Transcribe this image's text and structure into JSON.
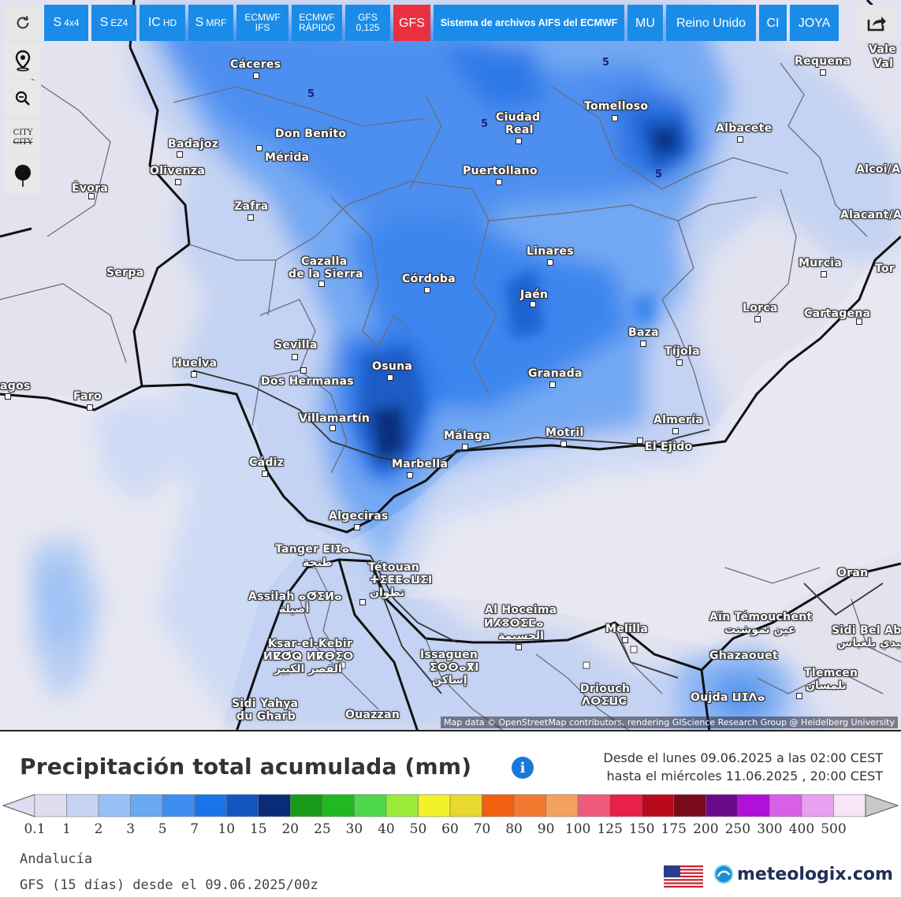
{
  "toolbar": {
    "refresh_icon": "refresh-icon",
    "buttons": [
      {
        "main": "S",
        "sub": "4x4"
      },
      {
        "main": "S",
        "sub": "EZ4"
      },
      {
        "main": "IC",
        "sub": "HD"
      },
      {
        "main": "S",
        "sub": "MRF"
      },
      {
        "line1": "ECMWF",
        "line2": "IFS"
      },
      {
        "line1": "ECMWF",
        "line2": "RÁPIDO"
      },
      {
        "line1": "GFS",
        "line2": "0,125"
      },
      {
        "main": "GFS"
      },
      {
        "main": "Sistema de archivos AIFS del ECMWF"
      },
      {
        "main": "MU"
      },
      {
        "main": "Reino Unido"
      },
      {
        "main": "CI"
      },
      {
        "main": "JOYA"
      }
    ],
    "active_model": "GFS",
    "share_icon": "share-icon"
  },
  "side_tools": {
    "location_icon": "map-pin-icon",
    "zoom_icon": "zoom-icon",
    "city_line1": "CITY",
    "city_line2": "CITY",
    "marker_icon": "marker-icon"
  },
  "map": {
    "cities": [
      {
        "name": "Cáceres"
      },
      {
        "name": "Requena"
      },
      {
        "name": "Vale"
      },
      {
        "name": "Val"
      },
      {
        "name": "Ciudad"
      },
      {
        "name": "Real"
      },
      {
        "name": "Tomelloso"
      },
      {
        "name": "Albacete"
      },
      {
        "name": "Badajoz"
      },
      {
        "name": "Don Benito"
      },
      {
        "name": "Mérida"
      },
      {
        "name": "Olivenza"
      },
      {
        "name": "Évora"
      },
      {
        "name": "Puertollano"
      },
      {
        "name": "Alcoi/A"
      },
      {
        "name": "Zafra"
      },
      {
        "name": "Alacant/A"
      },
      {
        "name": "Cazalla"
      },
      {
        "name": "de la Sierra"
      },
      {
        "name": "Linares"
      },
      {
        "name": "Murcia"
      },
      {
        "name": "Tor"
      },
      {
        "name": "Serpa"
      },
      {
        "name": "Córdoba"
      },
      {
        "name": "Jaén"
      },
      {
        "name": "Lorca"
      },
      {
        "name": "Cartagena"
      },
      {
        "name": "Baza"
      },
      {
        "name": "Sevilla"
      },
      {
        "name": "Tíjola"
      },
      {
        "name": "Huelva"
      },
      {
        "name": "Osuna"
      },
      {
        "name": "Dos Hermanas"
      },
      {
        "name": "Granada"
      },
      {
        "name": "agos"
      },
      {
        "name": "Faro"
      },
      {
        "name": "Villamartín"
      },
      {
        "name": "Almería"
      },
      {
        "name": "Málaga"
      },
      {
        "name": "Motril"
      },
      {
        "name": "El Ejido"
      },
      {
        "name": "Cádiz"
      },
      {
        "name": "Marbella"
      },
      {
        "name": "Algeciras"
      },
      {
        "name": "Tanger ⵟⵏⵊⴰ"
      },
      {
        "name": "طنجة"
      },
      {
        "name": "Tétouan"
      },
      {
        "name": "ⵜⵉⵟⵟⴰⵡⵉⵏ"
      },
      {
        "name": "تطوان"
      },
      {
        "name": "Oran"
      },
      {
        "name": "Assilah ⴰⵚⵉⵍⴰ"
      },
      {
        "name": "أصيلة"
      },
      {
        "name": "Al Hoceima"
      },
      {
        "name": "ⵍⵃⵓⵙⵉⵎⴰ"
      },
      {
        "name": "الحسيمة"
      },
      {
        "name": "Aïn Témouchent"
      },
      {
        "name": "عين تموشنت"
      },
      {
        "name": "Melilla"
      },
      {
        "name": "Sidi Bel Ab"
      },
      {
        "name": "سيدي بلعباس"
      },
      {
        "name": "Ksar-el-Kebir"
      },
      {
        "name": "ⵍⵇⵚⵕ ⵍⴽⴱⵉⵔ"
      },
      {
        "name": "القصر الكبير"
      },
      {
        "name": "Issaguen"
      },
      {
        "name": "ⵉⵙⵙⴰⴳⵏ"
      },
      {
        "name": "إساكن"
      },
      {
        "name": "Ghazaouet"
      },
      {
        "name": "Tlemcen"
      },
      {
        "name": "تلمسان"
      },
      {
        "name": "Driouch"
      },
      {
        "name": "ⴷⵔⵉⵡⵛ"
      },
      {
        "name": "Oujda ⵡⵊⴷⴰ"
      },
      {
        "name": "Sidi Yahya"
      },
      {
        "name": "du Gharb"
      },
      {
        "name": "Ouazzan"
      }
    ],
    "contour_labels": [
      "5",
      "5",
      "5",
      "5"
    ],
    "attribution": "Map data © OpenStreetMap contributors, rendering GIScience Research Group @ Heidelberg University"
  },
  "legend": {
    "title": "Precipitación total acumulada (mm)",
    "info_icon": "info-icon",
    "period_line1": "Desde el lunes 09.06.2025 a  las 02:00  CEST",
    "period_line2": "hasta el miércoles 11.06.2025 ,  20:00  CEST",
    "unit": "mm",
    "ticks": [
      "0.1",
      "1",
      "2",
      "3",
      "5",
      "7",
      "10",
      "15",
      "20",
      "25",
      "30",
      "40",
      "50",
      "60",
      "70",
      "80",
      "90",
      "100",
      "125",
      "150",
      "175",
      "200",
      "250",
      "300",
      "400",
      "500"
    ],
    "colors": [
      "#dedef0",
      "#c6d2f2",
      "#98c0f4",
      "#6aaaf2",
      "#3d8ef0",
      "#1a74e8",
      "#1456c0",
      "#0a2b78",
      "#1a9a1a",
      "#22b822",
      "#4cd84c",
      "#9aea3a",
      "#f2f22a",
      "#e8d830",
      "#f06010",
      "#f27a30",
      "#f4a060",
      "#f05a7a",
      "#e8204a",
      "#b80a1a",
      "#7a0a1a",
      "#6a0a8a",
      "#b010d8",
      "#d860e8",
      "#e8a0f0",
      "#f6e6f6",
      "#c8c8c8"
    ],
    "region": "Andalucía",
    "model": "GFS (15 días) desde el 09.06.2025/00z",
    "flag_icon": "us-flag-icon",
    "brand": "meteologix.com",
    "brand_icon": "meteologix-logo-icon"
  }
}
